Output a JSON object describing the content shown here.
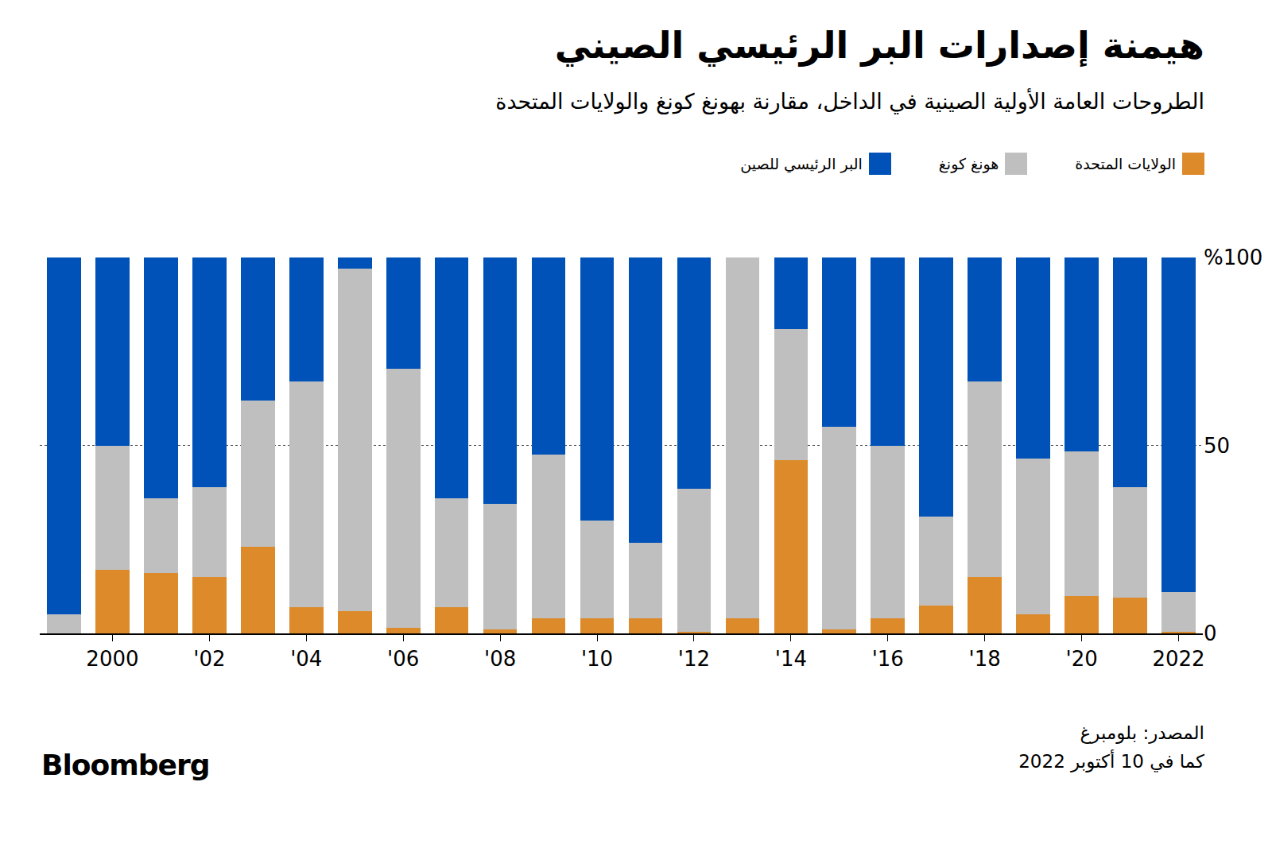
{
  "chart_data": {
    "type": "bar",
    "stacked": true,
    "title": "هيمنة إصدارات البر الرئيسي الصيني",
    "subtitle": "الطروحات العامة الأولية الصينية في الداخل، مقارنة بهونغ كونغ والولايات المتحدة",
    "source": "المصدر: بلومبرغ",
    "note": "كما في 10 أكتوبر 2022",
    "brand": "Bloomberg",
    "categories": [
      null,
      "2000",
      null,
      "'02",
      null,
      "'04",
      null,
      "'06",
      null,
      "'08",
      null,
      "'10",
      null,
      "'12",
      null,
      "'14",
      null,
      "'16",
      null,
      "'18",
      null,
      "'20",
      null,
      "2022"
    ],
    "series": [
      {
        "name": "الولايات المتحدة",
        "color": "#dc8a2a",
        "values": [
          0,
          17,
          16,
          15,
          23,
          7,
          6,
          1.5,
          7,
          1,
          4,
          4,
          4,
          0.5,
          4,
          46,
          1,
          4,
          7.5,
          15,
          5,
          10,
          9.5,
          0.5
        ]
      },
      {
        "name": "هونغ كونغ",
        "color": "#bfbfbf",
        "values": [
          5,
          33,
          20,
          24,
          39,
          60,
          91,
          69,
          29,
          33.5,
          43.5,
          26,
          20,
          38,
          96,
          35,
          54,
          46,
          23.5,
          52,
          41.5,
          38.5,
          29.5,
          10.5
        ]
      },
      {
        "name": "البر الرئيسي للصين",
        "color": "#0052b8",
        "values": [
          95,
          50,
          64,
          61,
          38,
          33,
          3,
          29.5,
          64,
          65.5,
          52.5,
          70,
          76,
          61.5,
          0,
          19,
          45,
          50,
          69,
          33,
          53.5,
          51.5,
          61,
          89
        ]
      }
    ],
    "ylim": [
      0,
      100
    ],
    "yticks": [
      0,
      50,
      {
        "value": 100,
        "label": "%100"
      }
    ],
    "grid": true,
    "legend": "top right"
  }
}
